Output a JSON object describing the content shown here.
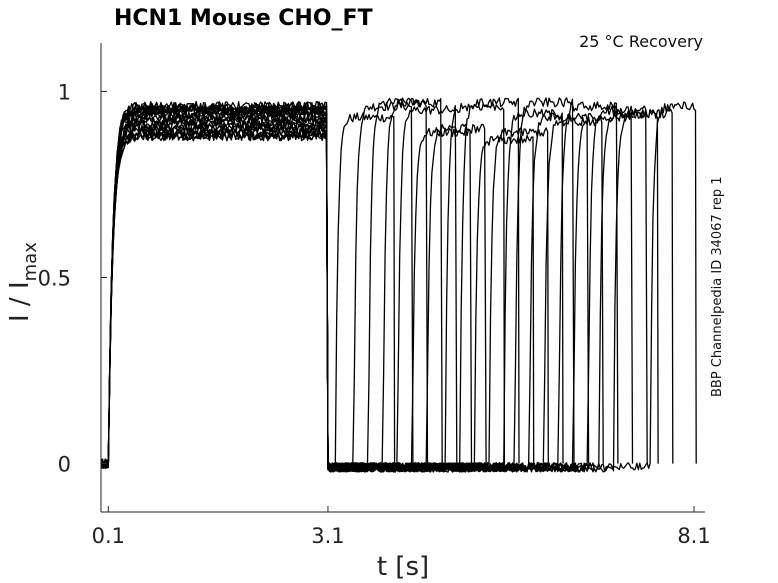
{
  "chart_data": {
    "type": "line",
    "title": "HCN1  Mouse  CHO_FT",
    "annotation": "25 °C  Recovery",
    "side_label": "BBP Channelpedia ID 34067 rep 1",
    "xlabel": "t [s]",
    "ylabel_main": "I / I",
    "ylabel_sub": "max",
    "xlim": [
      0,
      8.25
    ],
    "ylim": [
      -0.13,
      1.13
    ],
    "xticks": [
      0.1,
      3.1,
      8.1
    ],
    "xtick_labels": [
      "0.1",
      "3.1",
      "8.1"
    ],
    "yticks": [
      0,
      0.5,
      1
    ],
    "ytick_labels": [
      "0",
      "0.5",
      "1"
    ],
    "grid": false,
    "prepulse": {
      "on_time": 0.1,
      "off_time": 3.1,
      "steady_levels": [
        0.88,
        0.89,
        0.9,
        0.91,
        0.92,
        0.93,
        0.94,
        0.95,
        0.95,
        0.96
      ]
    },
    "series": [
      {
        "recovery_onset": 3.2,
        "recovered_level": 0.93
      },
      {
        "recovery_onset": 3.45,
        "recovered_level": 0.96
      },
      {
        "recovery_onset": 3.65,
        "recovered_level": 0.97
      },
      {
        "recovery_onset": 3.85,
        "recovered_level": 0.97
      },
      {
        "recovery_onset": 4.05,
        "recovered_level": 0.95
      },
      {
        "recovery_onset": 4.25,
        "recovered_level": 0.89
      },
      {
        "recovery_onset": 4.45,
        "recovered_level": 0.9
      },
      {
        "recovery_onset": 4.7,
        "recovered_level": 0.96
      },
      {
        "recovery_onset": 4.9,
        "recovered_level": 0.97
      },
      {
        "recovery_onset": 5.1,
        "recovered_level": 0.87
      },
      {
        "recovery_onset": 5.3,
        "recovered_level": 0.89
      },
      {
        "recovery_onset": 5.5,
        "recovered_level": 0.94
      },
      {
        "recovery_onset": 5.65,
        "recovered_level": 0.97
      },
      {
        "recovery_onset": 5.85,
        "recovered_level": 0.93
      },
      {
        "recovery_onset": 6.05,
        "recovered_level": 0.92
      },
      {
        "recovery_onset": 6.25,
        "recovered_level": 0.96
      },
      {
        "recovery_onset": 6.45,
        "recovered_level": 0.93
      },
      {
        "recovery_onset": 6.65,
        "recovered_level": 0.95
      },
      {
        "recovery_onset": 6.8,
        "recovered_level": 0.94
      },
      {
        "recovery_onset": 7.0,
        "recovered_level": 0.94
      },
      {
        "recovery_onset": 7.5,
        "recovered_level": 0.96
      }
    ],
    "colors": {
      "trace": "#000000",
      "axis": "#262626"
    }
  }
}
